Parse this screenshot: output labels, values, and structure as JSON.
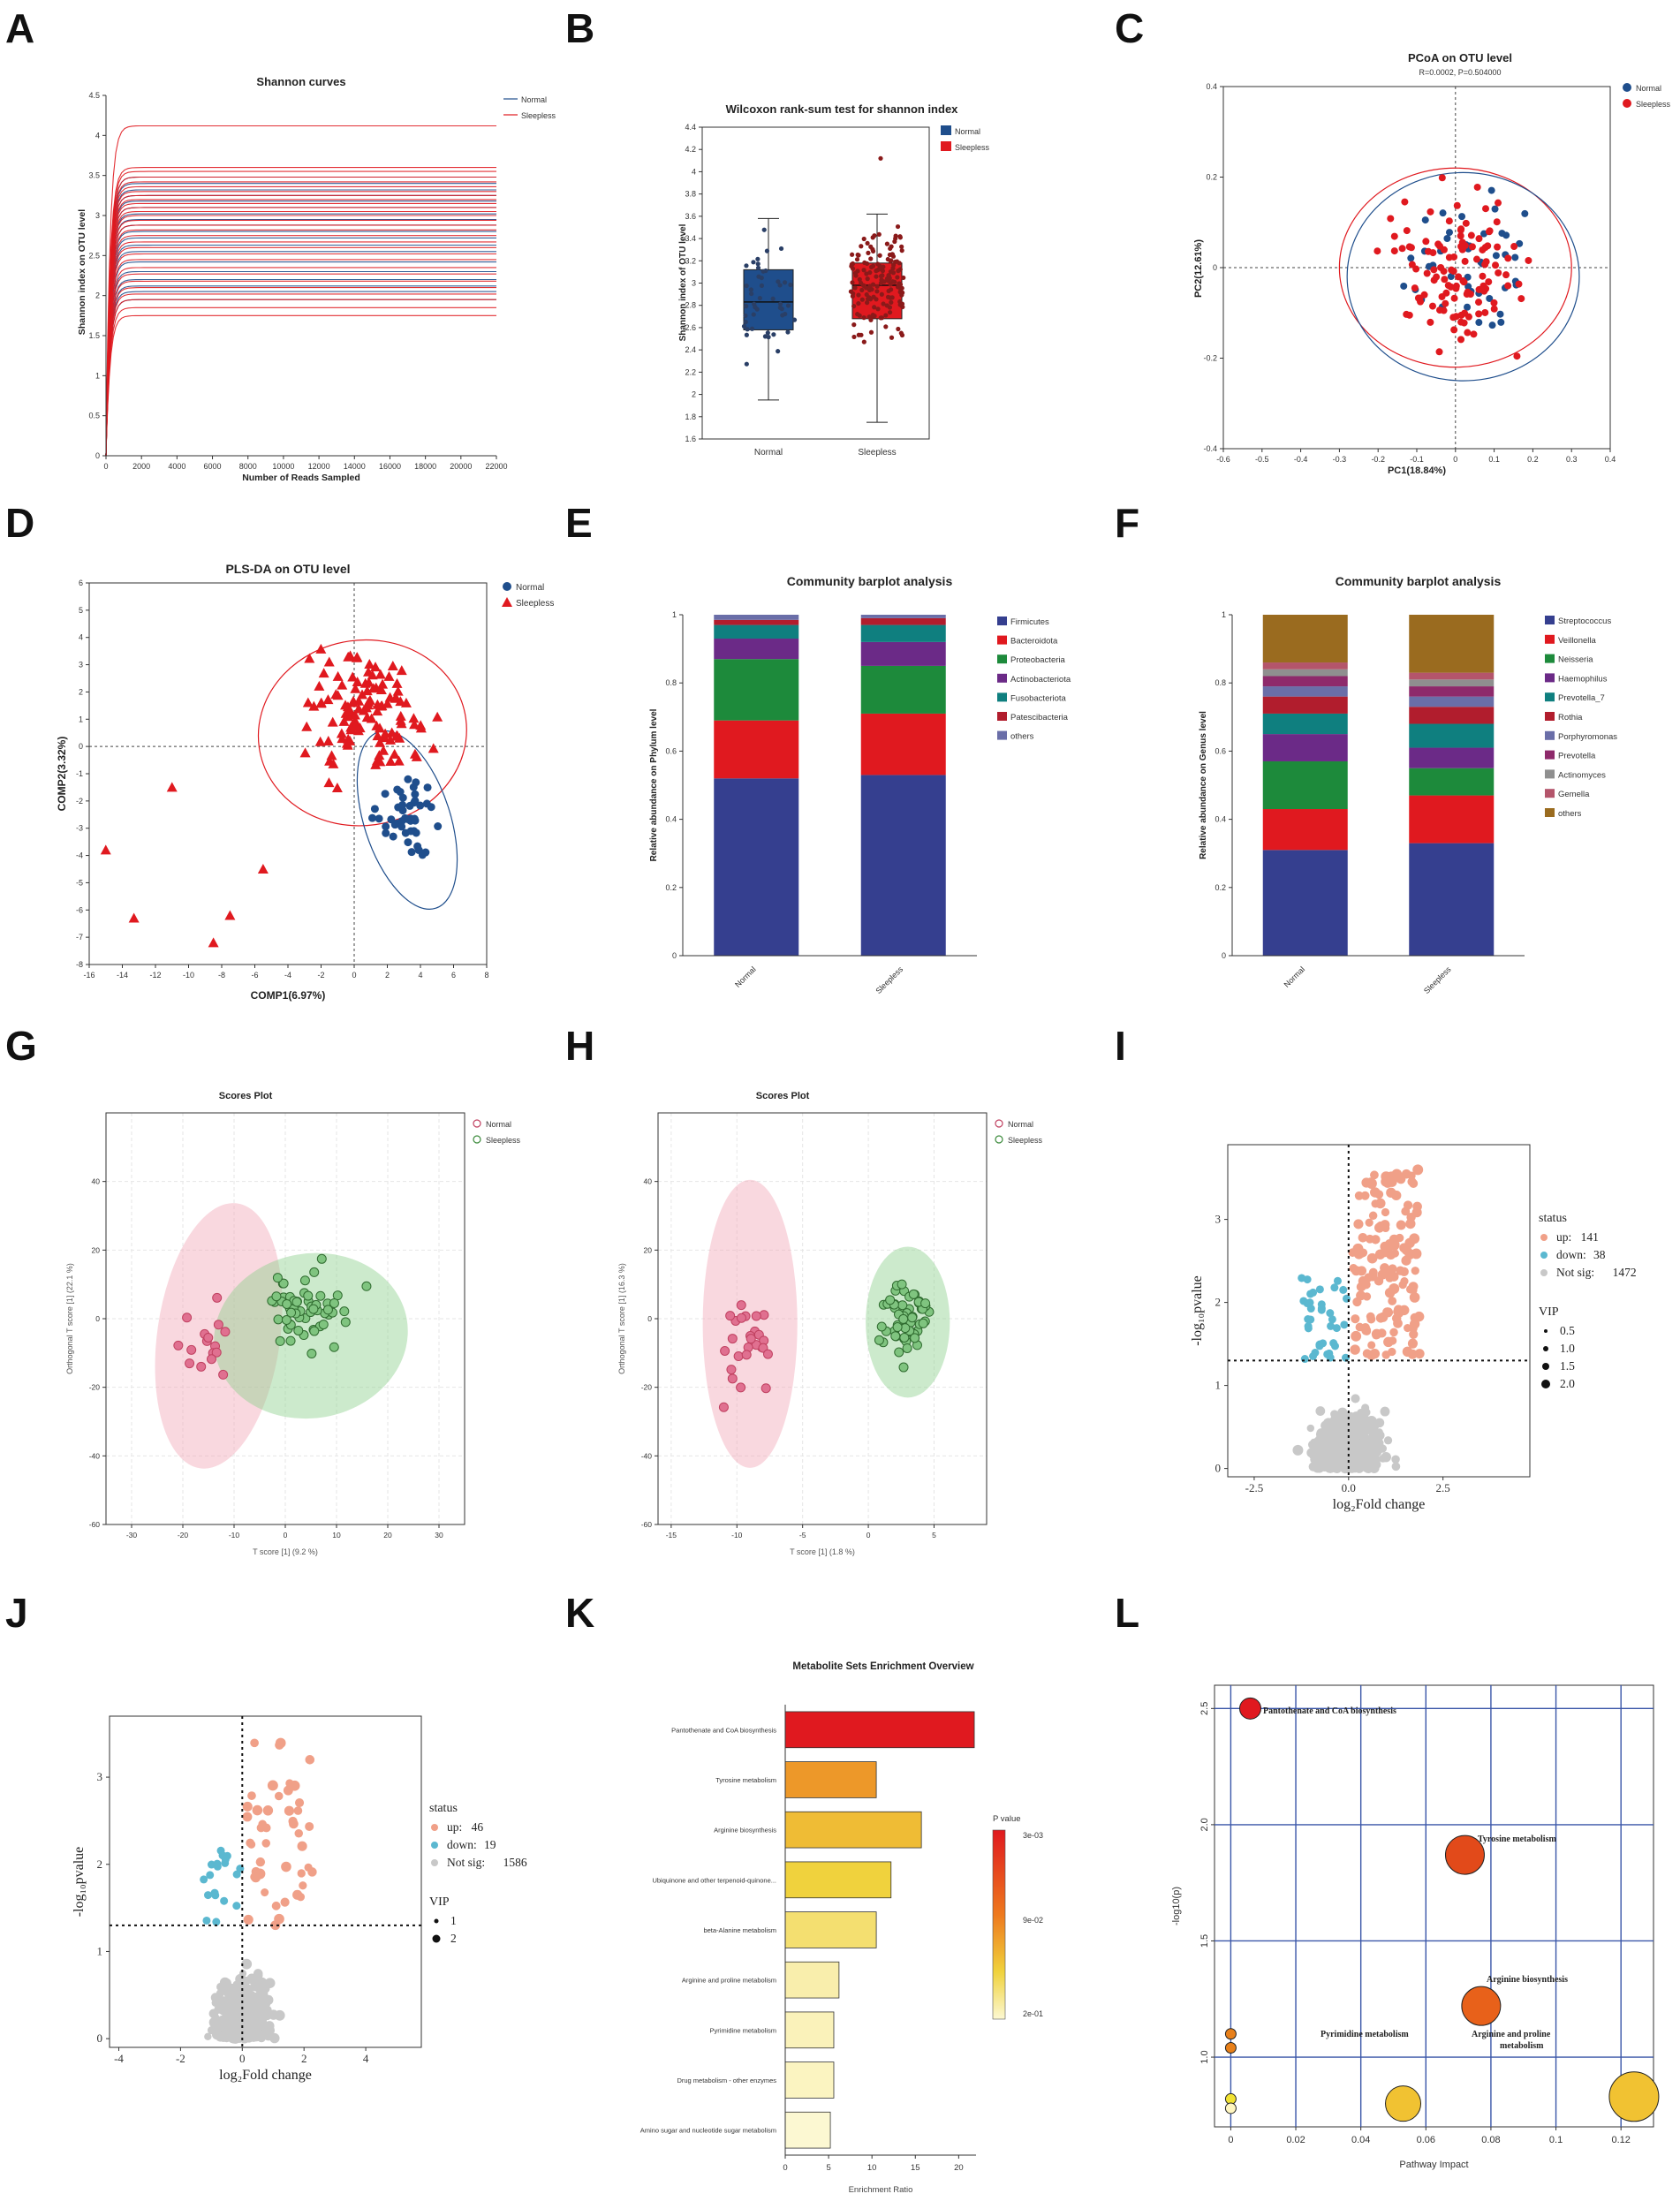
{
  "colors": {
    "normal_blue": "#1f4e8c",
    "sleepless_red": "#e0191f",
    "dark_red": "#9b1b1b",
    "pink": "#f2a9b8",
    "green": "#8fd18f",
    "up": "#f0a088",
    "down": "#5bb8d0",
    "ns": "#c8c8c8"
  },
  "panel_letters": [
    "A",
    "B",
    "C",
    "D",
    "E",
    "F",
    "G",
    "H",
    "I",
    "J",
    "K",
    "L"
  ],
  "chart_data": [
    {
      "id": "A",
      "type": "line",
      "title": "Shannon curves",
      "xlabel": "Number of Reads Sampled",
      "ylabel": "Shannon index on OTU level",
      "xlim": [
        0,
        22000
      ],
      "ylim": [
        0,
        4.5
      ],
      "xticks": [
        0,
        2000,
        4000,
        6000,
        8000,
        10000,
        12000,
        14000,
        16000,
        18000,
        20000,
        22000
      ],
      "yticks": [
        0,
        0.5,
        1,
        1.5,
        2,
        2.5,
        3,
        3.5,
        4,
        4.5
      ],
      "legend": [
        "Normal",
        "Sleepless"
      ],
      "series": [
        {
          "name": "Normal",
          "plateaus": [
            1.95,
            2.05,
            2.12,
            2.2,
            2.3,
            2.42,
            2.55,
            2.63,
            2.72,
            2.8,
            2.88,
            2.95,
            3.02,
            3.1,
            3.18,
            3.25,
            3.32,
            3.4,
            3.48
          ]
        },
        {
          "name": "Sleepless",
          "plateaus": [
            1.75,
            1.85,
            1.95,
            2.02,
            2.1,
            2.18,
            2.27,
            2.35,
            2.45,
            2.52,
            2.6,
            2.67,
            2.75,
            2.82,
            2.88,
            2.94,
            3.0,
            3.05,
            3.1,
            3.15,
            3.2,
            3.25,
            3.3,
            3.36,
            3.42,
            3.48,
            3.55,
            3.6,
            4.12
          ]
        }
      ]
    },
    {
      "id": "B",
      "type": "box",
      "title": "Wilcoxon rank-sum test for shannon index",
      "ylabel": "Shannon index of OTU level",
      "ylim": [
        1.6,
        4.4
      ],
      "yticks": [
        1.6,
        1.8,
        2,
        2.2,
        2.4,
        2.6,
        2.8,
        3,
        3.2,
        3.4,
        3.6,
        3.8,
        4,
        4.2,
        4.4
      ],
      "categories": [
        "Normal",
        "Sleepless"
      ],
      "legend": [
        "Normal",
        "Sleepless"
      ],
      "boxes": [
        {
          "name": "Normal",
          "min": 1.95,
          "q1": 2.58,
          "median": 2.83,
          "q3": 3.12,
          "max": 3.58
        },
        {
          "name": "Sleepless",
          "min": 1.75,
          "q1": 2.68,
          "median": 2.98,
          "q3": 3.18,
          "max": 3.62,
          "outlier": 4.12
        }
      ]
    },
    {
      "id": "C",
      "type": "scatter",
      "title": "PCoA on OTU level",
      "subtitle": "R=0.0002, P=0.504000",
      "xlabel": "PC1(18.84%)",
      "ylabel": "PC2(12.61%)",
      "xlim": [
        -0.6,
        0.4
      ],
      "ylim": [
        -0.4,
        0.4
      ],
      "xticks": [
        -0.6,
        -0.5,
        -0.4,
        -0.3,
        -0.2,
        -0.1,
        0,
        0.1,
        0.2,
        0.3,
        0.4
      ],
      "yticks": [
        -0.4,
        -0.2,
        0,
        0.2,
        0.4
      ],
      "legend": [
        "Normal",
        "Sleepless"
      ],
      "ellipses": [
        {
          "group": "Sleepless",
          "cx": 0.0,
          "cy": 0.0,
          "rx": 0.3,
          "ry": 0.22
        },
        {
          "group": "Normal",
          "cx": 0.02,
          "cy": -0.02,
          "rx": 0.3,
          "ry": 0.23
        }
      ]
    },
    {
      "id": "D",
      "type": "scatter",
      "title": "PLS-DA on OTU level",
      "xlabel": "COMP1(6.97%)",
      "ylabel": "COMP2(3.32%)",
      "xlim": [
        -16,
        8
      ],
      "ylim": [
        -8,
        6
      ],
      "xticks": [
        -16,
        -14,
        -12,
        -10,
        -8,
        -6,
        -4,
        -2,
        0,
        2,
        4,
        6,
        8
      ],
      "yticks": [
        -8,
        -7,
        -6,
        -5,
        -4,
        -3,
        -2,
        -1,
        0,
        1,
        2,
        3,
        4,
        5,
        6
      ],
      "legend": [
        "Normal",
        "Sleepless"
      ],
      "ellipses": [
        {
          "group": "Sleepless",
          "cx": 0.5,
          "cy": 0.5,
          "rx": 6.3,
          "ry": 3.4
        },
        {
          "group": "Normal",
          "cx": 3.2,
          "cy": -2.7,
          "rx": 2.6,
          "ry": 3.4
        }
      ]
    },
    {
      "id": "E",
      "type": "stacked_bar",
      "title": "Community barplot analysis",
      "ylabel": "Relative abundance on Phylum level",
      "ylim": [
        0,
        1
      ],
      "yticks": [
        0,
        0.2,
        0.4,
        0.6,
        0.8,
        1
      ],
      "categories": [
        "Normal",
        "Sleepless"
      ],
      "series": [
        {
          "name": "Firmicutes",
          "color": "#353f8f",
          "values": [
            0.52,
            0.53
          ]
        },
        {
          "name": "Bacteroidota",
          "color": "#e0191f",
          "values": [
            0.17,
            0.18
          ]
        },
        {
          "name": "Proteobacteria",
          "color": "#1d8a3b",
          "values": [
            0.18,
            0.14
          ]
        },
        {
          "name": "Actinobacteriota",
          "color": "#6b2a87",
          "values": [
            0.06,
            0.07
          ]
        },
        {
          "name": "Fusobacteriota",
          "color": "#0f7f7f",
          "values": [
            0.04,
            0.05
          ]
        },
        {
          "name": "Patescibacteria",
          "color": "#b11d2d",
          "values": [
            0.015,
            0.02
          ]
        },
        {
          "name": "others",
          "color": "#6a6ea8",
          "values": [
            0.015,
            0.01
          ]
        }
      ]
    },
    {
      "id": "F",
      "type": "stacked_bar",
      "title": "Community barplot analysis",
      "ylabel": "Relative abundance on Genus level",
      "ylim": [
        0,
        1
      ],
      "yticks": [
        0,
        0.2,
        0.4,
        0.6,
        0.8,
        1
      ],
      "categories": [
        "Normal",
        "Sleepless"
      ],
      "series": [
        {
          "name": "Streptococcus",
          "color": "#353f8f",
          "values": [
            0.31,
            0.33
          ]
        },
        {
          "name": "Veillonella",
          "color": "#e0191f",
          "values": [
            0.12,
            0.14
          ]
        },
        {
          "name": "Neisseria",
          "color": "#1d8a3b",
          "values": [
            0.14,
            0.08
          ]
        },
        {
          "name": "Haemophilus",
          "color": "#6b2a87",
          "values": [
            0.08,
            0.06
          ]
        },
        {
          "name": "Prevotella_7",
          "color": "#0f7f7f",
          "values": [
            0.06,
            0.07
          ]
        },
        {
          "name": "Rothia",
          "color": "#b11d2d",
          "values": [
            0.05,
            0.05
          ]
        },
        {
          "name": "Porphyromonas",
          "color": "#6a6ea8",
          "values": [
            0.03,
            0.03
          ]
        },
        {
          "name": "Prevotella",
          "color": "#8e2a6b",
          "values": [
            0.03,
            0.03
          ]
        },
        {
          "name": "Actinomyces",
          "color": "#8f8f8f",
          "values": [
            0.02,
            0.02
          ]
        },
        {
          "name": "Gemella",
          "color": "#b4556b",
          "values": [
            0.02,
            0.02
          ]
        },
        {
          "name": "others",
          "color": "#9a6b1f",
          "values": [
            0.14,
            0.17
          ]
        }
      ]
    },
    {
      "id": "G",
      "type": "scatter",
      "title": "Scores Plot",
      "xlabel": "T score [1] (9.2 %)",
      "ylabel": "Orthogonal T score [1] (22.1 %)",
      "xlim": [
        -35,
        35
      ],
      "ylim": [
        -60,
        60
      ],
      "xticks": [
        -30,
        -20,
        -10,
        0,
        10,
        20,
        30
      ],
      "yticks": [
        -60,
        -40,
        -20,
        0,
        20,
        40
      ],
      "legend": [
        "Normal",
        "Sleepless"
      ]
    },
    {
      "id": "H",
      "type": "scatter",
      "title": "Scores Plot",
      "xlabel": "T score [1] (1.8 %)",
      "ylabel": "Orthogonal T score [1] (16.3 %)",
      "xlim": [
        -16,
        9
      ],
      "ylim": [
        -60,
        60
      ],
      "xticks": [
        -15,
        -10,
        -5,
        0,
        5
      ],
      "yticks": [
        -60,
        -40,
        -20,
        0,
        20,
        40
      ],
      "legend": [
        "Normal",
        "Sleepless"
      ]
    },
    {
      "id": "I",
      "type": "scatter",
      "xlabel": "log₂Fold change",
      "ylabel": "-log₁₀pvalue",
      "xlim": [
        -3.2,
        4.8
      ],
      "ylim": [
        -0.1,
        3.9
      ],
      "xticks": [
        -2.5,
        0.0,
        2.5
      ],
      "xticklabels": [
        "-2.5",
        "0.0",
        "2.5"
      ],
      "yticks": [
        0,
        1,
        2,
        3
      ],
      "status_title": "status",
      "status": [
        {
          "label": "up:",
          "count": "141"
        },
        {
          "label": "down:",
          "count": "38"
        },
        {
          "label": "Not sig:",
          "count": "1472"
        }
      ],
      "vip_title": "VIP",
      "vip": [
        "0.5",
        "1.0",
        "1.5",
        "2.0"
      ]
    },
    {
      "id": "J",
      "type": "scatter",
      "xlabel": "log₂Fold change",
      "ylabel": "-log₁₀pvalue",
      "xlim": [
        -4.3,
        5.8
      ],
      "ylim": [
        -0.1,
        3.7
      ],
      "xticks": [
        -4,
        -2,
        0,
        2,
        4
      ],
      "yticks": [
        0,
        1,
        2,
        3
      ],
      "status_title": "status",
      "status": [
        {
          "label": "up:",
          "count": "46"
        },
        {
          "label": "down:",
          "count": "19"
        },
        {
          "label": "Not sig:",
          "count": "1586"
        }
      ],
      "vip_title": "VIP",
      "vip": [
        "1",
        "2"
      ]
    },
    {
      "id": "K",
      "type": "bar",
      "title": "Metabolite Sets Enrichment Overview",
      "xlabel": "Enrichment Ratio",
      "xlim": [
        0,
        22
      ],
      "xticks": [
        0,
        5,
        10,
        15,
        20
      ],
      "legend_title": "P value",
      "legend_ticks": [
        "3e-03",
        "9e-02",
        "2e-01"
      ],
      "categories": [
        "Pantothenate and CoA biosynthesis",
        "Tyrosine metabolism",
        "Arginine biosynthesis",
        "Ubiquinone and other terpenoid-quinone...",
        "beta-Alanine metabolism",
        "Arginine and proline metabolism",
        "Pyrimidine metabolism",
        "Drug metabolism - other enzymes",
        "Amino sugar and nucleotide sugar metabolism"
      ],
      "values": [
        21.8,
        10.5,
        15.7,
        12.2,
        10.5,
        6.2,
        5.6,
        5.6,
        5.2
      ],
      "pvalues": [
        0.003,
        0.02,
        0.035,
        0.05,
        0.08,
        0.14,
        0.16,
        0.17,
        0.2
      ]
    },
    {
      "id": "L",
      "type": "bubble",
      "xlabel": "Pathway Impact",
      "ylabel": "-log10(p)",
      "xlim": [
        -0.005,
        0.13
      ],
      "ylim": [
        0.7,
        2.6
      ],
      "xticks": [
        0,
        0.02,
        0.04,
        0.06,
        0.08,
        0.1,
        0.12
      ],
      "yticks": [
        1.0,
        1.5,
        2.0,
        2.5
      ],
      "points": [
        {
          "x": 0.006,
          "y": 2.5,
          "size": 12,
          "color": "#e0191f",
          "label": "Pantothenate and CoA biosynthesis"
        },
        {
          "x": 0.072,
          "y": 1.87,
          "size": 22,
          "color": "#e24a1a",
          "label": "Tyrosine metabolism"
        },
        {
          "x": 0.077,
          "y": 1.22,
          "size": 22,
          "color": "#e8611a",
          "label": "Arginine biosynthesis"
        },
        {
          "x": 0.053,
          "y": 0.8,
          "size": 20,
          "color": "#f1c232",
          "label": "Pyrimidine metabolism"
        },
        {
          "x": 0.124,
          "y": 0.83,
          "size": 28,
          "color": "#f1c232",
          "label": "Arginine and proline metabolism"
        },
        {
          "x": 0.0,
          "y": 1.1,
          "size": 6,
          "color": "#e8801a",
          "label": ""
        },
        {
          "x": 0.0,
          "y": 1.04,
          "size": 6,
          "color": "#e8801a",
          "label": ""
        },
        {
          "x": 0.0,
          "y": 0.82,
          "size": 6,
          "color": "#f1e232",
          "label": ""
        },
        {
          "x": 0.0,
          "y": 0.78,
          "size": 6,
          "color": "#fff6c0",
          "label": ""
        }
      ]
    }
  ]
}
